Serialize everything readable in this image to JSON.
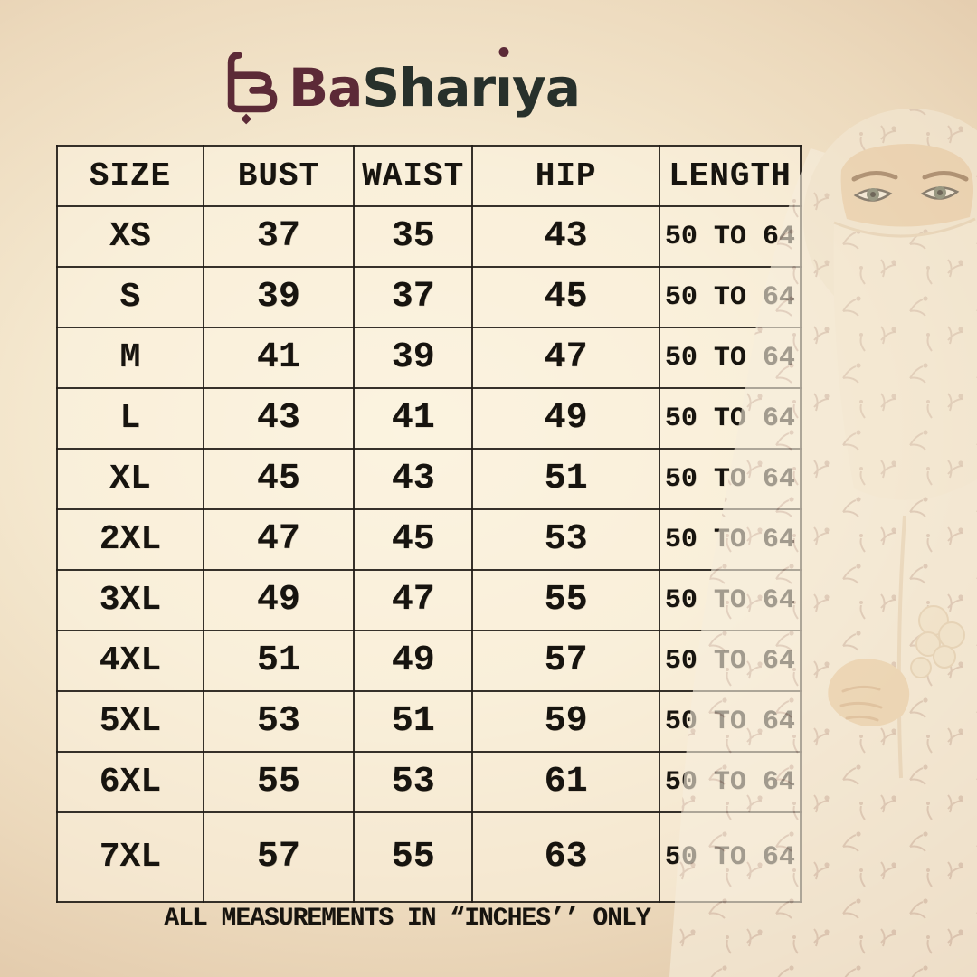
{
  "poster": {
    "brand": {
      "full_name": "BaShariya",
      "mark_icon": "stylized-arabic-ba-monogram",
      "text_maroon": "Ba",
      "text_dark_prefix": "Shar",
      "text_i": "ı",
      "text_dark_suffix": "ya"
    },
    "footer_note": "ALL MEASUREMENTS IN “INCHES’’ ONLY",
    "colors": {
      "accent_maroon": "#5c2a37",
      "logo_dark": "#27302b",
      "table_border": "#201c16",
      "cell_bg_cream": "#fdf6e3",
      "background_light": "#f9f1dc",
      "background_tan": "#d2b390"
    }
  },
  "chart_data": {
    "type": "table",
    "columns": [
      "SIZE",
      "BUST",
      "WAIST",
      "HIP",
      "LENGTH"
    ],
    "rows": [
      {
        "size": "XS",
        "bust": "37",
        "waist": "35",
        "hip": "43",
        "length": "50 TO 64"
      },
      {
        "size": "S",
        "bust": "39",
        "waist": "37",
        "hip": "45",
        "length": "50 TO 64"
      },
      {
        "size": "M",
        "bust": "41",
        "waist": "39",
        "hip": "47",
        "length": "50 TO 64"
      },
      {
        "size": "L",
        "bust": "43",
        "waist": "41",
        "hip": "49",
        "length": "50 TO 64"
      },
      {
        "size": "XL",
        "bust": "45",
        "waist": "43",
        "hip": "51",
        "length": "50 TO 64"
      },
      {
        "size": "2XL",
        "bust": "47",
        "waist": "45",
        "hip": "53",
        "length": "50 TO 64"
      },
      {
        "size": "3XL",
        "bust": "49",
        "waist": "47",
        "hip": "55",
        "length": "50 TO 64"
      },
      {
        "size": "4XL",
        "bust": "51",
        "waist": "49",
        "hip": "57",
        "length": "50 TO 64"
      },
      {
        "size": "5XL",
        "bust": "53",
        "waist": "51",
        "hip": "59",
        "length": "50 TO 64"
      },
      {
        "size": "6XL",
        "bust": "55",
        "waist": "53",
        "hip": "61",
        "length": "50 TO 64"
      },
      {
        "size": "7XL",
        "bust": "57",
        "waist": "55",
        "hip": "63",
        "length": "50 TO 64"
      }
    ],
    "units": "inches",
    "note": "ALL MEASUREMENTS IN “INCHES’’ ONLY"
  }
}
